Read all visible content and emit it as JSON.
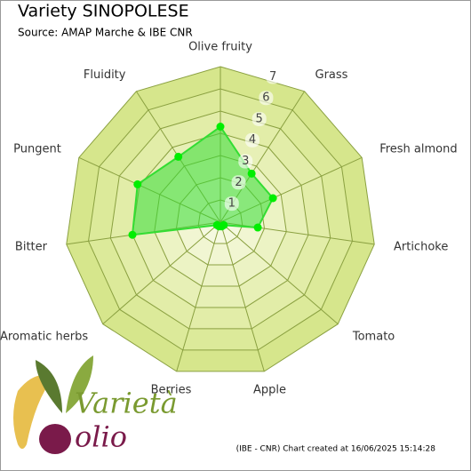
{
  "chart_data": {
    "type": "radar",
    "title": "Variety SINOPOLESE",
    "subtitle": "Source: AMAP Marche & IBE CNR",
    "categories": [
      "Olive fruity",
      "Grass",
      "Fresh almond",
      "Artichoke",
      "Tomato",
      "Apple",
      "Berries",
      "Aromatic herbs",
      "Bitter",
      "Pungent",
      "Fluidity"
    ],
    "series": [
      {
        "name": "SINOPOLESE",
        "color": "#33dd33",
        "values": [
          4.3,
          2.6,
          2.6,
          1.7,
          0.2,
          0.2,
          0.2,
          0.2,
          4.0,
          4.1,
          3.5
        ]
      }
    ],
    "ylim": [
      0,
      7
    ],
    "yticks": [
      1,
      2,
      3,
      4,
      5,
      6,
      7
    ],
    "grid": true,
    "logo": {
      "line1": "Varietà",
      "line2": "olio"
    },
    "footer": "(IBE - CNR) Chart created at 16/06/2025 15:14:28"
  }
}
